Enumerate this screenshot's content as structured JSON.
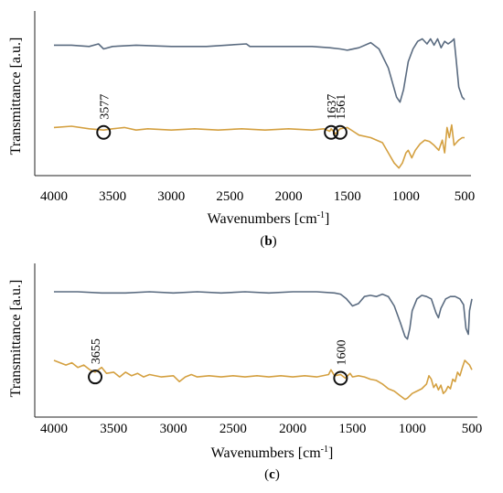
{
  "chart_data": [
    {
      "type": "line",
      "panel_label_pre": "(",
      "panel_label": "b",
      "panel_label_post": ")",
      "xlabel": "Wavenumbers [cm",
      "xlabel_sup": "-1",
      "xlabel_post": "]",
      "ylabel": "Transmittance [a.u.]",
      "xlim": [
        4000,
        500
      ],
      "x_ticks": [
        "4000",
        "3500",
        "3000",
        "2500",
        "2000",
        "1500",
        "1000",
        "500"
      ],
      "series": [
        {
          "color": "#5a6b80",
          "points": [
            [
              4000,
              0.27
            ],
            [
              3850,
              0.27
            ],
            [
              3700,
              0.28
            ],
            [
              3620,
              0.26
            ],
            [
              3577,
              0.3
            ],
            [
              3500,
              0.28
            ],
            [
              3300,
              0.27
            ],
            [
              3000,
              0.28
            ],
            [
              2700,
              0.28
            ],
            [
              2360,
              0.26
            ],
            [
              2330,
              0.28
            ],
            [
              2000,
              0.28
            ],
            [
              1800,
              0.28
            ],
            [
              1650,
              0.29
            ],
            [
              1561,
              0.3
            ],
            [
              1500,
              0.31
            ],
            [
              1400,
              0.29
            ],
            [
              1300,
              0.25
            ],
            [
              1230,
              0.3
            ],
            [
              1150,
              0.45
            ],
            [
              1080,
              0.68
            ],
            [
              1050,
              0.72
            ],
            [
              1020,
              0.62
            ],
            [
              980,
              0.4
            ],
            [
              940,
              0.3
            ],
            [
              900,
              0.24
            ],
            [
              860,
              0.22
            ],
            [
              820,
              0.26
            ],
            [
              790,
              0.22
            ],
            [
              760,
              0.27
            ],
            [
              730,
              0.22
            ],
            [
              700,
              0.29
            ],
            [
              670,
              0.24
            ],
            [
              640,
              0.26
            ],
            [
              610,
              0.24
            ],
            [
              590,
              0.22
            ],
            [
              570,
              0.4
            ],
            [
              550,
              0.6
            ],
            [
              520,
              0.68
            ],
            [
              500,
              0.7
            ]
          ]
        },
        {
          "color": "#d4a040",
          "points": [
            [
              4000,
              0.92
            ],
            [
              3850,
              0.91
            ],
            [
              3700,
              0.93
            ],
            [
              3577,
              0.94
            ],
            [
              3500,
              0.93
            ],
            [
              3400,
              0.92
            ],
            [
              3300,
              0.94
            ],
            [
              3200,
              0.93
            ],
            [
              3000,
              0.94
            ],
            [
              2800,
              0.93
            ],
            [
              2600,
              0.94
            ],
            [
              2400,
              0.93
            ],
            [
              2200,
              0.94
            ],
            [
              2000,
              0.93
            ],
            [
              1800,
              0.94
            ],
            [
              1700,
              0.93
            ],
            [
              1650,
              0.95
            ],
            [
              1637,
              0.93
            ],
            [
              1600,
              0.97
            ],
            [
              1561,
              0.93
            ],
            [
              1500,
              0.92
            ],
            [
              1450,
              0.95
            ],
            [
              1400,
              0.98
            ],
            [
              1300,
              1.0
            ],
            [
              1200,
              1.04
            ],
            [
              1150,
              1.12
            ],
            [
              1100,
              1.2
            ],
            [
              1060,
              1.24
            ],
            [
              1030,
              1.2
            ],
            [
              1000,
              1.12
            ],
            [
              980,
              1.1
            ],
            [
              950,
              1.16
            ],
            [
              920,
              1.1
            ],
            [
              880,
              1.05
            ],
            [
              840,
              1.02
            ],
            [
              800,
              1.03
            ],
            [
              760,
              1.06
            ],
            [
              720,
              1.1
            ],
            [
              690,
              1.02
            ],
            [
              670,
              1.12
            ],
            [
              650,
              0.92
            ],
            [
              630,
              1.0
            ],
            [
              610,
              0.9
            ],
            [
              590,
              1.06
            ],
            [
              570,
              1.04
            ],
            [
              550,
              1.02
            ],
            [
              520,
              1.0
            ],
            [
              500,
              1.0
            ]
          ]
        }
      ],
      "annotations": [
        {
          "label": "3577",
          "x": 3577,
          "y": 0.93
        },
        {
          "label": "1637",
          "x": 1637,
          "y": 0.93
        },
        {
          "label": "1561",
          "x": 1561,
          "y": 0.93
        }
      ]
    },
    {
      "type": "line",
      "panel_label_pre": "(",
      "panel_label": "c",
      "panel_label_post": ")",
      "xlabel": "Wavenumbers [cm",
      "xlabel_sup": "-1",
      "xlabel_post": "]",
      "ylabel": "Transmittance [a.u.]",
      "xlim": [
        4000,
        500
      ],
      "x_ticks": [
        "4000",
        "3500",
        "3000",
        "2500",
        "2000",
        "1500",
        "1000",
        "500"
      ],
      "series": [
        {
          "color": "#5a6b80",
          "points": [
            [
              4000,
              0.24
            ],
            [
              3800,
              0.24
            ],
            [
              3600,
              0.25
            ],
            [
              3400,
              0.25
            ],
            [
              3200,
              0.24
            ],
            [
              3000,
              0.25
            ],
            [
              2800,
              0.24
            ],
            [
              2600,
              0.25
            ],
            [
              2400,
              0.24
            ],
            [
              2200,
              0.25
            ],
            [
              2000,
              0.24
            ],
            [
              1800,
              0.24
            ],
            [
              1650,
              0.25
            ],
            [
              1600,
              0.26
            ],
            [
              1550,
              0.3
            ],
            [
              1500,
              0.36
            ],
            [
              1450,
              0.34
            ],
            [
              1400,
              0.28
            ],
            [
              1350,
              0.27
            ],
            [
              1300,
              0.28
            ],
            [
              1250,
              0.26
            ],
            [
              1200,
              0.28
            ],
            [
              1150,
              0.36
            ],
            [
              1100,
              0.5
            ],
            [
              1060,
              0.62
            ],
            [
              1040,
              0.64
            ],
            [
              1020,
              0.55
            ],
            [
              1000,
              0.4
            ],
            [
              960,
              0.3
            ],
            [
              920,
              0.27
            ],
            [
              880,
              0.28
            ],
            [
              840,
              0.3
            ],
            [
              800,
              0.42
            ],
            [
              780,
              0.46
            ],
            [
              760,
              0.38
            ],
            [
              720,
              0.3
            ],
            [
              680,
              0.28
            ],
            [
              640,
              0.28
            ],
            [
              600,
              0.3
            ],
            [
              570,
              0.35
            ],
            [
              550,
              0.55
            ],
            [
              530,
              0.6
            ],
            [
              520,
              0.4
            ],
            [
              500,
              0.3
            ]
          ]
        },
        {
          "color": "#d4a040",
          "points": [
            [
              4000,
              0.82
            ],
            [
              3900,
              0.86
            ],
            [
              3850,
              0.84
            ],
            [
              3800,
              0.88
            ],
            [
              3750,
              0.86
            ],
            [
              3700,
              0.9
            ],
            [
              3655,
              0.92
            ],
            [
              3600,
              0.88
            ],
            [
              3560,
              0.93
            ],
            [
              3500,
              0.92
            ],
            [
              3450,
              0.96
            ],
            [
              3400,
              0.92
            ],
            [
              3350,
              0.95
            ],
            [
              3300,
              0.93
            ],
            [
              3250,
              0.96
            ],
            [
              3200,
              0.94
            ],
            [
              3100,
              0.96
            ],
            [
              3000,
              0.95
            ],
            [
              2950,
              1.0
            ],
            [
              2900,
              0.96
            ],
            [
              2850,
              0.94
            ],
            [
              2800,
              0.96
            ],
            [
              2700,
              0.95
            ],
            [
              2600,
              0.96
            ],
            [
              2500,
              0.95
            ],
            [
              2400,
              0.96
            ],
            [
              2300,
              0.95
            ],
            [
              2200,
              0.96
            ],
            [
              2100,
              0.95
            ],
            [
              2000,
              0.96
            ],
            [
              1900,
              0.95
            ],
            [
              1800,
              0.96
            ],
            [
              1700,
              0.94
            ],
            [
              1680,
              0.9
            ],
            [
              1650,
              0.95
            ],
            [
              1600,
              0.94
            ],
            [
              1560,
              0.97
            ],
            [
              1520,
              0.93
            ],
            [
              1500,
              0.96
            ],
            [
              1450,
              0.95
            ],
            [
              1400,
              0.96
            ],
            [
              1350,
              0.98
            ],
            [
              1300,
              0.99
            ],
            [
              1250,
              1.02
            ],
            [
              1200,
              1.06
            ],
            [
              1150,
              1.08
            ],
            [
              1100,
              1.12
            ],
            [
              1060,
              1.15
            ],
            [
              1040,
              1.14
            ],
            [
              1000,
              1.1
            ],
            [
              960,
              1.08
            ],
            [
              920,
              1.06
            ],
            [
              880,
              1.02
            ],
            [
              860,
              0.95
            ],
            [
              840,
              0.98
            ],
            [
              820,
              1.05
            ],
            [
              800,
              1.02
            ],
            [
              780,
              1.07
            ],
            [
              760,
              1.03
            ],
            [
              740,
              1.1
            ],
            [
              720,
              1.08
            ],
            [
              700,
              1.04
            ],
            [
              680,
              1.06
            ],
            [
              660,
              0.98
            ],
            [
              640,
              1.0
            ],
            [
              620,
              0.92
            ],
            [
              600,
              0.95
            ],
            [
              580,
              0.88
            ],
            [
              560,
              0.82
            ],
            [
              540,
              0.84
            ],
            [
              520,
              0.86
            ],
            [
              500,
              0.9
            ]
          ]
        }
      ],
      "annotations": [
        {
          "label": "3655",
          "x": 3655,
          "y": 0.93
        },
        {
          "label": "1600",
          "x": 1600,
          "y": 0.94
        }
      ]
    }
  ]
}
